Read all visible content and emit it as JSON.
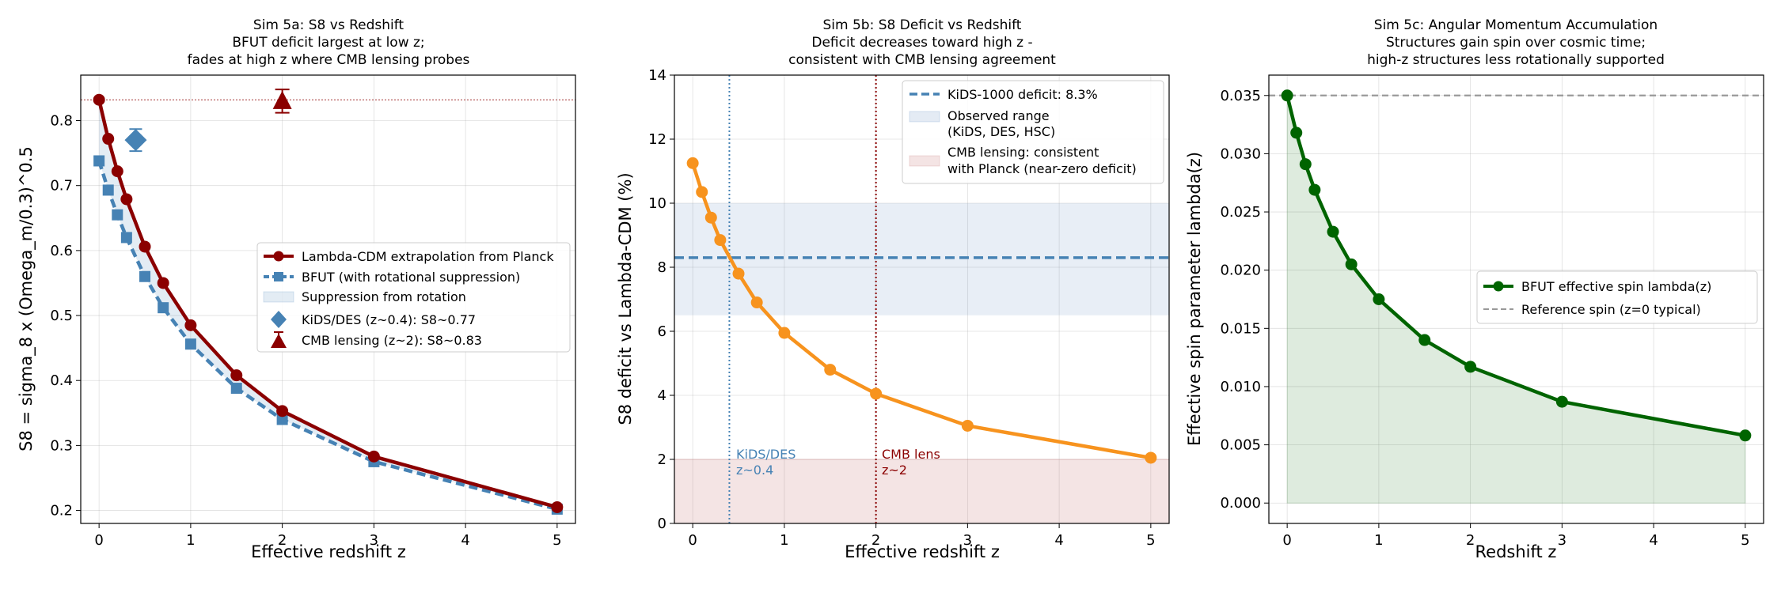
{
  "colors": {
    "lcdm": "#8b0000",
    "bfut": "#4682b4",
    "kids": "#4682b4",
    "cmb": "#8b0000",
    "deficit": "#f7931e",
    "spin": "#006400",
    "ref": "#999999",
    "obs_band": "#4a7ab8",
    "cmb_band": "#c97a7a"
  },
  "chart_data": [
    {
      "id": "sim5a",
      "type": "line",
      "title": [
        "Sim 5a: S8 vs Redshift",
        "BFUT deficit largest at low z;",
        "fades at high z where CMB lensing probes"
      ],
      "xlabel": "Effective redshift z",
      "ylabel": "S8 = sigma_8 x (Omega_m/0.3)^0.5",
      "xlim": [
        -0.2,
        5.2
      ],
      "ylim": [
        0.18,
        0.87
      ],
      "xticks": [
        0,
        1,
        2,
        3,
        4,
        5
      ],
      "yticks": [
        0.2,
        0.3,
        0.4,
        0.5,
        0.6,
        0.7,
        0.8
      ],
      "ytick_labels": [
        "0.2",
        "0.3",
        "0.4",
        "0.5",
        "0.6",
        "0.7",
        "0.8"
      ],
      "grid": true,
      "legend_position": "center-right",
      "x": [
        0,
        0.1,
        0.2,
        0.3,
        0.5,
        0.7,
        1.0,
        1.5,
        2.0,
        3.0,
        5.0
      ],
      "series": [
        {
          "name": "Lambda-CDM extrapolation from Planck",
          "style": "solid-circle",
          "values": [
            0.832,
            0.772,
            0.722,
            0.679,
            0.606,
            0.55,
            0.485,
            0.408,
            0.353,
            0.283,
            0.205
          ]
        },
        {
          "name": "BFUT (with rotational suppression)",
          "style": "dashed-square",
          "values": [
            0.738,
            0.693,
            0.655,
            0.62,
            0.56,
            0.512,
            0.456,
            0.388,
            0.34,
            0.275,
            0.202
          ]
        }
      ],
      "fill_label": "Suppression from rotation",
      "reference_line": 0.832,
      "points": [
        {
          "name": "KiDS/DES (z~0.4): S8~0.77",
          "x": 0.4,
          "y": 0.77,
          "yerr": 0.017,
          "marker": "diamond"
        },
        {
          "name": "CMB lensing (z~2): S8~0.83",
          "x": 2.0,
          "y": 0.83,
          "yerr": 0.018,
          "marker": "triangle"
        }
      ]
    },
    {
      "id": "sim5b",
      "type": "line",
      "title": [
        "Sim 5b: S8 Deficit vs Redshift",
        "Deficit decreases toward high z -",
        "consistent with CMB lensing agreement"
      ],
      "xlabel": "Effective redshift z",
      "ylabel": "S8 deficit vs Lambda-CDM (%)",
      "xlim": [
        -0.2,
        5.2
      ],
      "ylim": [
        0,
        14
      ],
      "xticks": [
        0,
        1,
        2,
        3,
        4,
        5
      ],
      "yticks": [
        0,
        2,
        4,
        6,
        8,
        10,
        12,
        14
      ],
      "grid": true,
      "legend_position": "top-right",
      "x": [
        0,
        0.1,
        0.2,
        0.3,
        0.5,
        0.7,
        1.0,
        1.5,
        2.0,
        3.0,
        5.0
      ],
      "series": [
        {
          "name": "",
          "style": "solid-circle",
          "values": [
            11.25,
            10.35,
            9.55,
            8.85,
            7.8,
            6.9,
            5.95,
            4.8,
            4.05,
            3.05,
            2.05
          ]
        }
      ],
      "hline": {
        "label": "KiDS-1000 deficit: 8.3%",
        "value": 8.3
      },
      "bands": [
        {
          "label_lines": [
            "Observed range",
            "(KiDS, DES, HSC)"
          ],
          "range": [
            6.5,
            10
          ]
        },
        {
          "label_lines": [
            "CMB lensing: consistent",
            "with Planck (near-zero deficit)"
          ],
          "range": [
            0,
            2
          ]
        }
      ],
      "vlines": [
        {
          "x": 0.4,
          "label_lines": [
            "KiDS/DES",
            "z~0.4"
          ]
        },
        {
          "x": 2.0,
          "label_lines": [
            "CMB lens",
            "z~2"
          ]
        }
      ]
    },
    {
      "id": "sim5c",
      "type": "area",
      "title": [
        "Sim 5c: Angular Momentum Accumulation",
        "Structures gain spin over cosmic time;",
        "high-z structures less rotationally supported"
      ],
      "xlabel": "Redshift z",
      "ylabel": "Effective spin parameter lambda(z)",
      "xlim": [
        -0.2,
        5.2
      ],
      "ylim": [
        -0.00175,
        0.03675
      ],
      "xticks": [
        0,
        1,
        2,
        3,
        4,
        5
      ],
      "yticks": [
        0,
        0.005,
        0.01,
        0.015,
        0.02,
        0.025,
        0.03,
        0.035
      ],
      "ytick_labels": [
        "0.000",
        "0.005",
        "0.010",
        "0.015",
        "0.020",
        "0.025",
        "0.030",
        "0.035"
      ],
      "grid": true,
      "legend_position": "center-right",
      "x": [
        0,
        0.1,
        0.2,
        0.3,
        0.5,
        0.7,
        1.0,
        1.5,
        2.0,
        3.0,
        5.0
      ],
      "series": [
        {
          "name": "BFUT effective spin lambda(z)",
          "style": "solid-circle",
          "values": [
            0.035,
            0.0318,
            0.0291,
            0.0269,
            0.0233,
            0.0205,
            0.0175,
            0.014,
            0.0117,
            0.0087,
            0.0058
          ]
        }
      ],
      "reference": {
        "label": "Reference spin (z=0 typical)",
        "value": 0.035
      }
    }
  ]
}
